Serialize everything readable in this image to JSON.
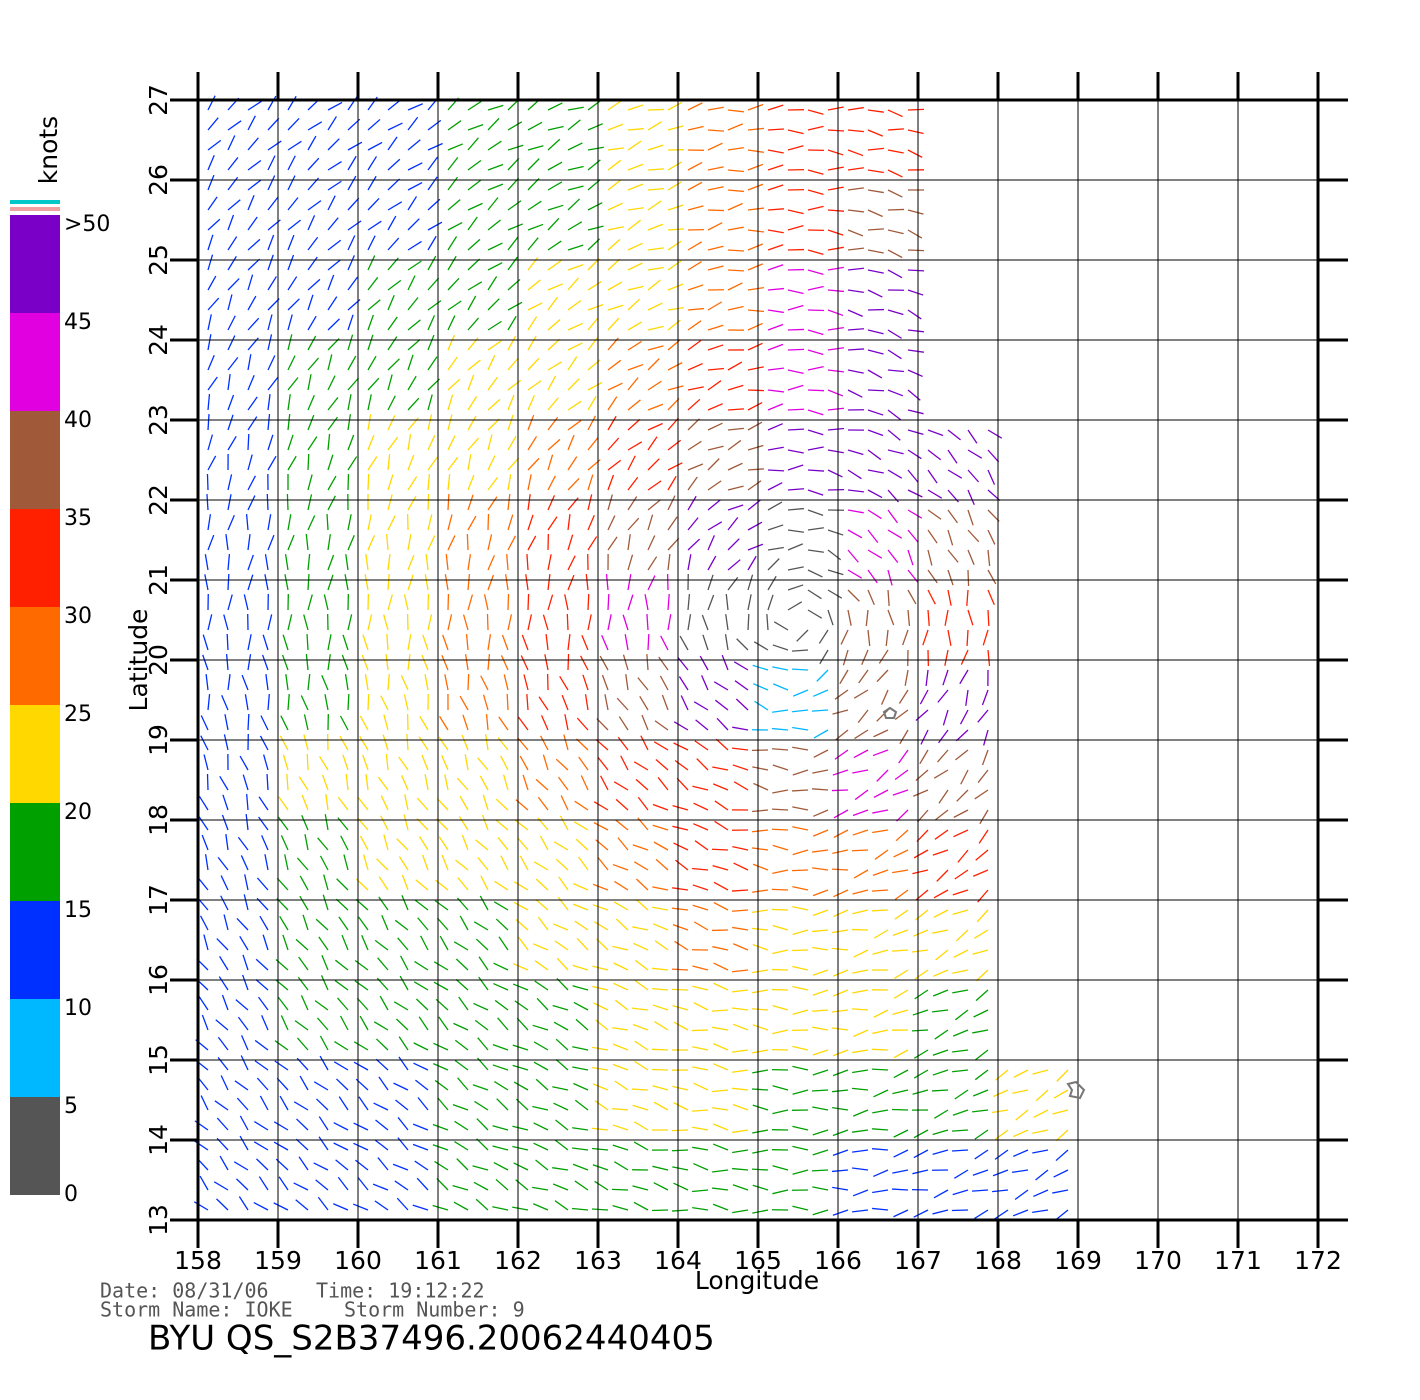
{
  "chart_data": {
    "type": "wind-map",
    "xlabel": "Longitude",
    "ylabel": "Latitude",
    "xlim": [
      158,
      172
    ],
    "ylim": [
      13,
      27
    ],
    "xticks": [
      158,
      159,
      160,
      161,
      162,
      163,
      164,
      165,
      166,
      167,
      168,
      169,
      170,
      171,
      172
    ],
    "yticks": [
      13,
      14,
      15,
      16,
      17,
      18,
      19,
      20,
      21,
      22,
      23,
      24,
      25,
      26,
      27
    ],
    "grid": true,
    "wind_speed": {
      "lon": [
        158.5,
        159.5,
        160.5,
        161.5,
        162.5,
        163.5,
        164.5,
        165.5,
        166.5,
        167.5,
        168.5
      ],
      "lat": [
        26.5,
        25.5,
        24.5,
        23.5,
        22.5,
        21.5,
        20.5,
        19.5,
        18.5,
        17.5,
        16.5,
        15.5,
        14.5,
        13.5
      ],
      "values": [
        [
          10,
          10,
          12,
          16,
          18,
          24,
          27,
          33,
          33,
          null,
          null
        ],
        [
          10,
          10,
          12,
          17,
          18,
          23,
          28,
          33,
          38,
          null,
          null
        ],
        [
          10,
          14,
          18,
          17,
          20,
          24,
          28,
          40,
          45,
          null,
          null
        ],
        [
          13,
          17,
          18,
          22,
          24,
          27,
          33,
          43,
          45,
          null,
          null
        ],
        [
          13,
          15,
          20,
          23,
          27,
          30,
          38,
          45,
          45,
          45,
          null
        ],
        [
          14,
          17,
          20,
          25,
          30,
          35,
          45,
          2,
          40,
          35,
          null
        ],
        [
          12,
          17,
          20,
          25,
          30,
          40,
          3,
          3,
          35,
          30,
          null
        ],
        [
          12,
          18,
          22,
          25,
          30,
          35,
          45,
          5,
          38,
          45,
          null
        ],
        [
          14,
          20,
          20,
          22,
          28,
          30,
          30,
          35,
          40,
          35,
          null
        ],
        [
          14,
          18,
          20,
          20,
          22,
          28,
          30,
          28,
          25,
          30,
          null
        ],
        [
          14,
          18,
          17,
          18,
          20,
          24,
          25,
          22,
          22,
          20,
          null
        ],
        [
          12,
          15,
          15,
          15,
          18,
          20,
          24,
          22,
          20,
          17,
          null
        ],
        [
          10,
          12,
          12,
          15,
          18,
          20,
          22,
          18,
          17,
          16,
          20
        ],
        [
          10,
          10,
          12,
          15,
          15,
          18,
          18,
          15,
          14,
          12,
          10
        ]
      ]
    },
    "colorbar": {
      "label": "knots",
      "ticks": [
        0,
        5,
        10,
        15,
        20,
        25,
        30,
        35,
        40,
        45,
        {
          "value": 50,
          "label": ">50"
        }
      ],
      "colors": [
        "#555555",
        "#00b8ff",
        "#0030ff",
        "#00a000",
        "#ffd800",
        "#ff6a00",
        "#ff2000",
        "#a05a3a",
        "#e000e0",
        "#7a00c8"
      ]
    }
  },
  "footer": {
    "date": "Date: 08/31/06",
    "time": "Time: 19:12:22",
    "storm_name": "Storm  Name: IOKE",
    "storm_number": "Storm  Number: 9",
    "file": "BYU  QS_S2B37496.20062440405"
  }
}
